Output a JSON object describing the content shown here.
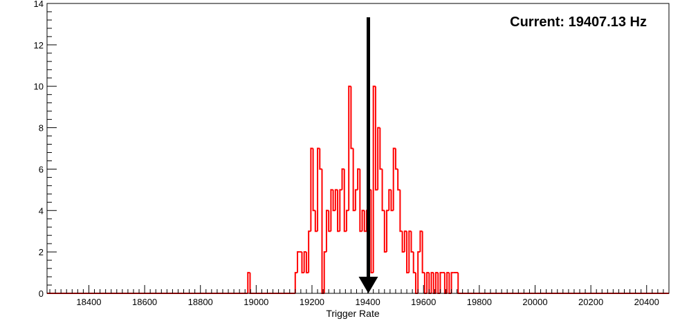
{
  "colors": {
    "histogram": "#ff0000",
    "axis": "#000000",
    "arrow": "#000000",
    "background": "#ffffff"
  },
  "chart_data": {
    "type": "histogram",
    "xlabel": "Trigger Rate",
    "ylabel": "",
    "xlim": [
      18250,
      20480
    ],
    "ylim": [
      0,
      14
    ],
    "xticks": [
      18400,
      18600,
      18800,
      19000,
      19200,
      19400,
      19600,
      19800,
      20000,
      20200,
      20400
    ],
    "yticks": [
      0,
      2,
      4,
      6,
      8,
      10,
      12,
      14
    ],
    "grid": false,
    "legend": "none",
    "annotation": {
      "text": "Current: 19407.13 Hz",
      "marker_x": 19407.13,
      "marker": "downward arrow"
    },
    "bin_edges": [
      18250,
      18970,
      18978,
      19140,
      19148,
      19156,
      19164,
      19172,
      19180,
      19188,
      19196,
      19204,
      19212,
      19220,
      19228,
      19236,
      19244,
      19252,
      19260,
      19268,
      19276,
      19284,
      19292,
      19300,
      19308,
      19316,
      19324,
      19332,
      19340,
      19348,
      19356,
      19364,
      19372,
      19380,
      19388,
      19396,
      19404,
      19412,
      19420,
      19428,
      19436,
      19444,
      19452,
      19460,
      19468,
      19476,
      19484,
      19492,
      19500,
      19508,
      19516,
      19524,
      19532,
      19540,
      19548,
      19556,
      19564,
      19572,
      19580,
      19588,
      19596,
      19604,
      19612,
      19620,
      19628,
      19636,
      19644,
      19652,
      19660,
      19668,
      19676,
      19684,
      19692,
      19700,
      19708,
      19716,
      19724,
      20480
    ],
    "counts": [
      0,
      1,
      0,
      1,
      2,
      2,
      1,
      2,
      1,
      3,
      7,
      4,
      3,
      7,
      6,
      0,
      2,
      4,
      3,
      5,
      4,
      5,
      3,
      5,
      6,
      3,
      4,
      10,
      7,
      4,
      5,
      6,
      3,
      4,
      3,
      4,
      5,
      1,
      10,
      5,
      8,
      6,
      4,
      2,
      4,
      5,
      4,
      7,
      6,
      5,
      3,
      2,
      3,
      1,
      3,
      2,
      1,
      0,
      2,
      3,
      1,
      0,
      1,
      0,
      1,
      0,
      1,
      0,
      1,
      1,
      0,
      1,
      0,
      1,
      1,
      1,
      0
    ]
  }
}
